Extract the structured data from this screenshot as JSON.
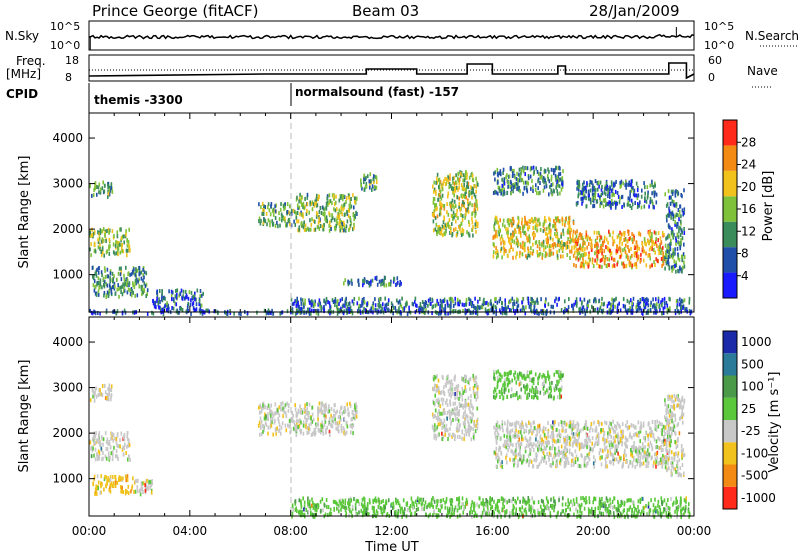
{
  "header": {
    "station": "Prince George (fitACF)",
    "beam": "Beam 03",
    "date": "28/Jan/2009"
  },
  "summary_panels": {
    "nsky_label": "N.Sky",
    "nsky_ticks": [
      "10^5",
      "10^0"
    ],
    "nsearch_label": "N.Search",
    "nsearch_ticks": [
      "10^5",
      "10^0"
    ],
    "freq_label": "Freq.",
    "freq_unit": "[MHz]",
    "freq_ticks": [
      "18",
      "8"
    ],
    "nave_label": "Nave",
    "nave_ticks": [
      "60",
      "0"
    ],
    "cpid_label": "CPID",
    "cpid_segments": [
      {
        "label": "themis -3300",
        "start_hour": 0
      },
      {
        "label": "normalsound (fast) -157",
        "start_hour": 8
      }
    ]
  },
  "chart_data": [
    {
      "type": "heatmap",
      "name": "power",
      "ylabel": "Slant Range [km]",
      "xlabel": "",
      "xlim": [
        0,
        24
      ],
      "ylim": [
        180,
        4550
      ],
      "yticks": [
        "1000",
        "2000",
        "3000",
        "4000"
      ],
      "colorbar_label": "Power [dB]",
      "colorbar_ticks": [
        "4",
        "8",
        "12",
        "16",
        "20",
        "24",
        "28"
      ],
      "colorbar_range": [
        0,
        32
      ],
      "colors": [
        "#1a1aff",
        "#1f4fa8",
        "#3a8c5a",
        "#7fc23a",
        "#f2c21c",
        "#f28a14",
        "#ff2a1a"
      ],
      "echo_regions": [
        {
          "t": [
            0.0,
            0.9
          ],
          "r": [
            2750,
            3100
          ],
          "level": 12
        },
        {
          "t": [
            0.0,
            1.6
          ],
          "r": [
            1450,
            2050
          ],
          "level": 16
        },
        {
          "t": [
            0.1,
            2.3
          ],
          "r": [
            550,
            1200
          ],
          "level": 11
        },
        {
          "t": [
            2.5,
            4.5
          ],
          "r": [
            250,
            700
          ],
          "level": 6
        },
        {
          "t": [
            6.7,
            8.2
          ],
          "r": [
            2100,
            2600
          ],
          "level": 13
        },
        {
          "t": [
            8.2,
            10.6
          ],
          "r": [
            2000,
            2800
          ],
          "level": 15
        },
        {
          "t": [
            10.7,
            11.4
          ],
          "r": [
            2900,
            3250
          ],
          "level": 12
        },
        {
          "t": [
            10.0,
            12.4
          ],
          "r": [
            800,
            980
          ],
          "level": 7
        },
        {
          "t": [
            13.6,
            15.4
          ],
          "r": [
            1900,
            3300
          ],
          "level": 17
        },
        {
          "t": [
            16.0,
            19.2
          ],
          "r": [
            1400,
            2300
          ],
          "level": 20
        },
        {
          "t": [
            19.2,
            22.8
          ],
          "r": [
            1200,
            2000
          ],
          "level": 24
        },
        {
          "t": [
            16.0,
            18.8
          ],
          "r": [
            2800,
            3400
          ],
          "level": 10
        },
        {
          "t": [
            19.3,
            22.5
          ],
          "r": [
            2500,
            3100
          ],
          "level": 8
        },
        {
          "t": [
            22.8,
            23.6
          ],
          "r": [
            1100,
            2900
          ],
          "level": 9
        },
        {
          "t": [
            8.0,
            23.8
          ],
          "r": [
            200,
            520
          ],
          "level": 7
        },
        {
          "t": [
            0.0,
            24.0
          ],
          "r": [
            180,
            260
          ],
          "level": 5
        }
      ]
    },
    {
      "type": "heatmap",
      "name": "velocity",
      "ylabel": "Slant Range [km]",
      "xlabel": "Time UT",
      "xlim": [
        0,
        24
      ],
      "ylim": [
        180,
        4550
      ],
      "xticks": [
        "00:00",
        "04:00",
        "08:00",
        "12:00",
        "16:00",
        "20:00",
        "00:00"
      ],
      "yticks": [
        "1000",
        "2000",
        "3000",
        "4000"
      ],
      "colorbar_label": "Velocity [m s⁻¹]",
      "colorbar_ticks": [
        "1000",
        "500",
        "100",
        "25",
        "-25",
        "-100",
        "-500",
        "-1000"
      ],
      "colors": [
        "#1a2aa8",
        "#2a7a9a",
        "#4a9a4a",
        "#5ac83a",
        "#c8c8c8",
        "#f2c21c",
        "#f28a14",
        "#ff2a1a"
      ],
      "echo_regions": [
        {
          "t": [
            0.0,
            0.9
          ],
          "r": [
            2750,
            3100
          ],
          "level": 4
        },
        {
          "t": [
            0.0,
            1.6
          ],
          "r": [
            1450,
            2050
          ],
          "level": 4
        },
        {
          "t": [
            0.1,
            1.8
          ],
          "r": [
            700,
            1100
          ],
          "level": 5
        },
        {
          "t": [
            1.8,
            2.5
          ],
          "r": [
            700,
            1000
          ],
          "level": 4
        },
        {
          "t": [
            6.7,
            10.6
          ],
          "r": [
            2000,
            2700
          ],
          "level": 4
        },
        {
          "t": [
            13.6,
            15.4
          ],
          "r": [
            1900,
            3300
          ],
          "level": 4
        },
        {
          "t": [
            16.0,
            23.0
          ],
          "r": [
            1300,
            2300
          ],
          "level": 4
        },
        {
          "t": [
            16.0,
            18.8
          ],
          "r": [
            2800,
            3400
          ],
          "level": 3
        },
        {
          "t": [
            22.8,
            23.6
          ],
          "r": [
            1100,
            2900
          ],
          "level": 4
        },
        {
          "t": [
            8.0,
            23.8
          ],
          "r": [
            200,
            620
          ],
          "level": 3
        }
      ]
    }
  ]
}
